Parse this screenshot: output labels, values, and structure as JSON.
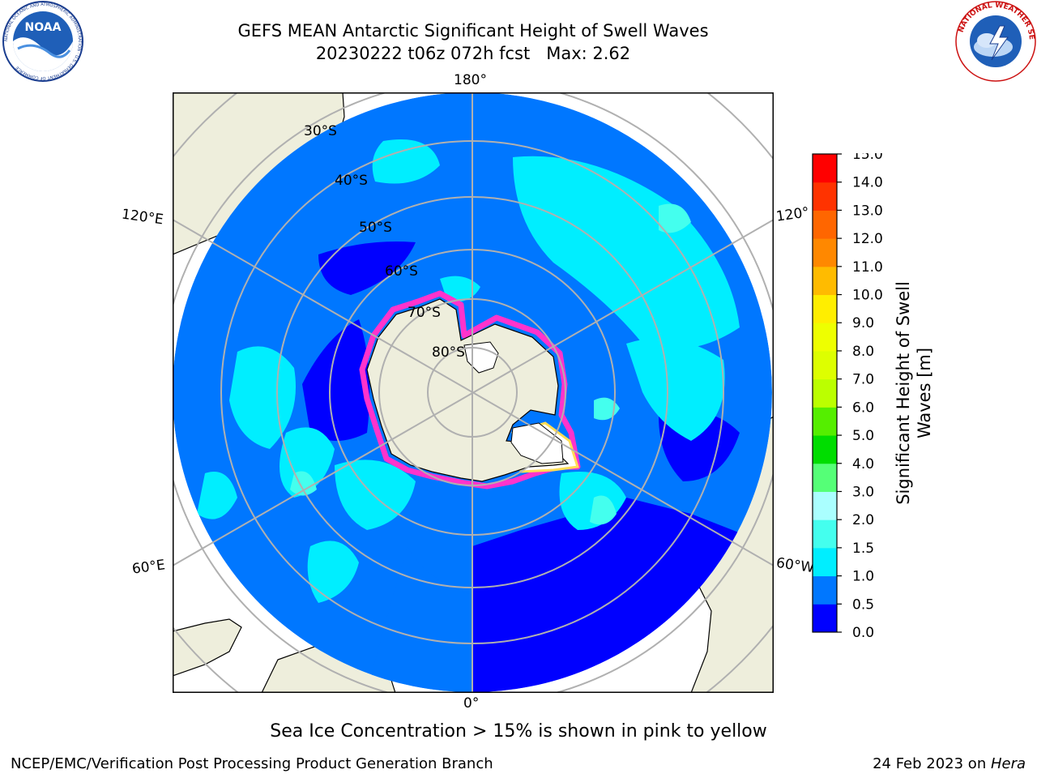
{
  "header": {
    "title_line1": "GEFS MEAN Antarctic Significant Height of Swell Waves",
    "title_line2": "20230222 t06z 072h fcst   Max: 2.62"
  },
  "logos": {
    "left": "noaa-logo",
    "left_text": "NOAA",
    "left_ring_text": "NATIONAL OCEANIC AND ATMOSPHERIC ADMINISTRATION · U.S. DEPARTMENT OF COMMERCE",
    "right": "national-weather-service-logo",
    "right_ring_text": "NATIONAL WEATHER SERVICE"
  },
  "map": {
    "projection": "south polar stereographic",
    "longitude_labels": [
      "180°",
      "120°E",
      "120°",
      "60°E",
      "60°W",
      "0°"
    ],
    "latitude_labels": [
      "30°S",
      "40°S",
      "50°S",
      "60°S",
      "70°S",
      "80°S"
    ],
    "colors": {
      "land": "#eeeedc",
      "ice_edge_pink": "#ff33cc",
      "ice_edge_yellow": "#ffdd55",
      "ice_interior": "#ffffff",
      "gridlines": "#b0b0b0"
    }
  },
  "colorbar": {
    "label_line1": "Significant Height of Swell",
    "label_line2": "Waves [m]",
    "ticks": [
      "0.0",
      "0.5",
      "1.0",
      "1.5",
      "2.0",
      "3.0",
      "4.0",
      "5.0",
      "6.0",
      "7.0",
      "8.0",
      "9.0",
      "10.0",
      "11.0",
      "12.0",
      "13.0",
      "14.0",
      "15.0"
    ],
    "bins": [
      {
        "from": 0.0,
        "to": 0.5,
        "color": "#0000ff"
      },
      {
        "from": 0.5,
        "to": 1.0,
        "color": "#0077ff"
      },
      {
        "from": 1.0,
        "to": 1.5,
        "color": "#00eeff"
      },
      {
        "from": 1.5,
        "to": 2.0,
        "color": "#44ffee"
      },
      {
        "from": 2.0,
        "to": 3.0,
        "color": "#aaffff"
      },
      {
        "from": 3.0,
        "to": 4.0,
        "color": "#55ff77"
      },
      {
        "from": 4.0,
        "to": 5.0,
        "color": "#00dd00"
      },
      {
        "from": 5.0,
        "to": 6.0,
        "color": "#55ee00"
      },
      {
        "from": 6.0,
        "to": 7.0,
        "color": "#bbff00"
      },
      {
        "from": 7.0,
        "to": 8.0,
        "color": "#ddff00"
      },
      {
        "from": 8.0,
        "to": 9.0,
        "color": "#eeff00"
      },
      {
        "from": 9.0,
        "to": 10.0,
        "color": "#ffee00"
      },
      {
        "from": 10.0,
        "to": 11.0,
        "color": "#ffbb00"
      },
      {
        "from": 11.0,
        "to": 12.0,
        "color": "#ff8800"
      },
      {
        "from": 12.0,
        "to": 13.0,
        "color": "#ff6600"
      },
      {
        "from": 13.0,
        "to": 14.0,
        "color": "#ff3300"
      },
      {
        "from": 14.0,
        "to": 15.0,
        "color": "#ff0000"
      }
    ]
  },
  "note": "Sea Ice Concentration > 15% is shown in pink to yellow",
  "footer": {
    "left": "NCEP/EMC/Verification Post Processing Product Generation Branch",
    "right_date": "24 Feb 2023 on ",
    "right_host": "Hera"
  }
}
